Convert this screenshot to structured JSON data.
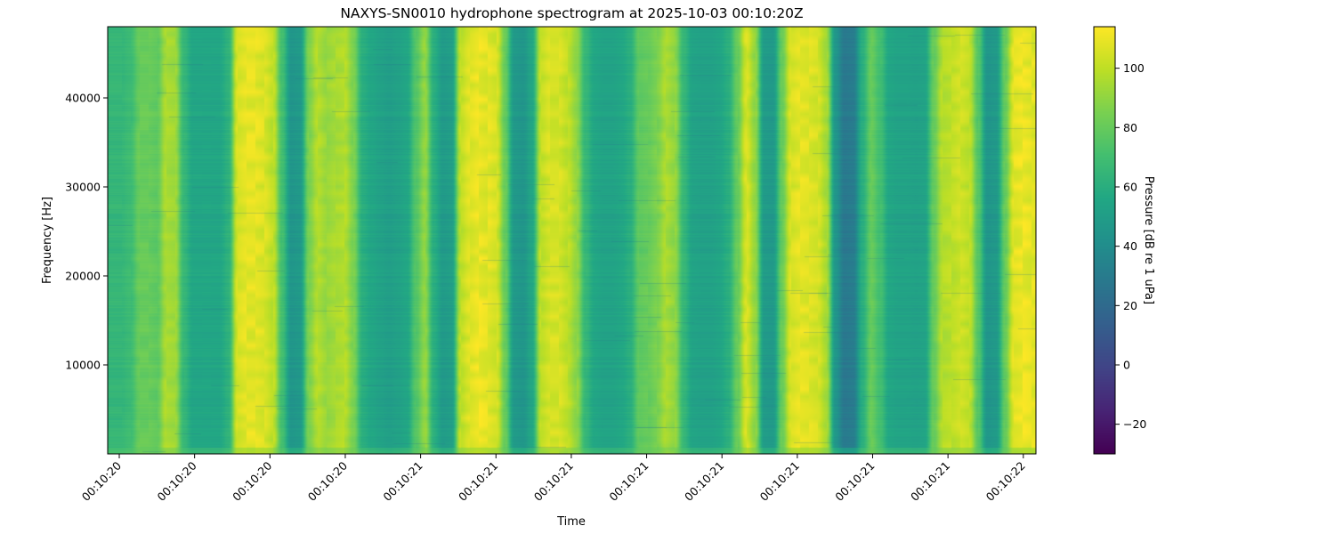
{
  "chart_data": {
    "type": "heatmap",
    "title": "NAXYS-SN0010 hydrophone spectrogram at 2025-10-03 00:10:20Z",
    "xlabel": "Time",
    "ylabel": "Frequency [Hz]",
    "x_tick_labels": [
      "00:10:20",
      "00:10:20",
      "00:10:20",
      "00:10:20",
      "00:10:21",
      "00:10:21",
      "00:10:21",
      "00:10:21",
      "00:10:21",
      "00:10:21",
      "00:10:21",
      "00:10:21",
      "00:10:22"
    ],
    "ylim": [
      0,
      48000
    ],
    "y_ticks": [
      10000,
      20000,
      30000,
      40000
    ],
    "colorbar": {
      "label": "Pressure [dB re 1 uPa]",
      "colormap": "viridis",
      "range": [
        -30,
        114
      ],
      "ticks": [
        -20,
        0,
        20,
        40,
        60,
        80,
        100
      ]
    },
    "time_profile_db": [
      65,
      65,
      68,
      80,
      80,
      78,
      95,
      93,
      65,
      55,
      55,
      55,
      55,
      62,
      105,
      108,
      108,
      106,
      100,
      70,
      45,
      47,
      85,
      97,
      92,
      95,
      97,
      85,
      60,
      55,
      52,
      50,
      52,
      55,
      75,
      90,
      60,
      48,
      50,
      100,
      107,
      110,
      108,
      105,
      80,
      47,
      45,
      55,
      100,
      105,
      105,
      100,
      90,
      65,
      55,
      53,
      53,
      55,
      60,
      78,
      80,
      85,
      95,
      90,
      65,
      53,
      52,
      52,
      54,
      60,
      80,
      105,
      90,
      48,
      47,
      80,
      105,
      108,
      107,
      105,
      95,
      45,
      28,
      30,
      60,
      80,
      70,
      55,
      53,
      53,
      52,
      53,
      80,
      98,
      100,
      103,
      100,
      75,
      45,
      47,
      80,
      108,
      110,
      108
    ],
    "grid": false
  }
}
